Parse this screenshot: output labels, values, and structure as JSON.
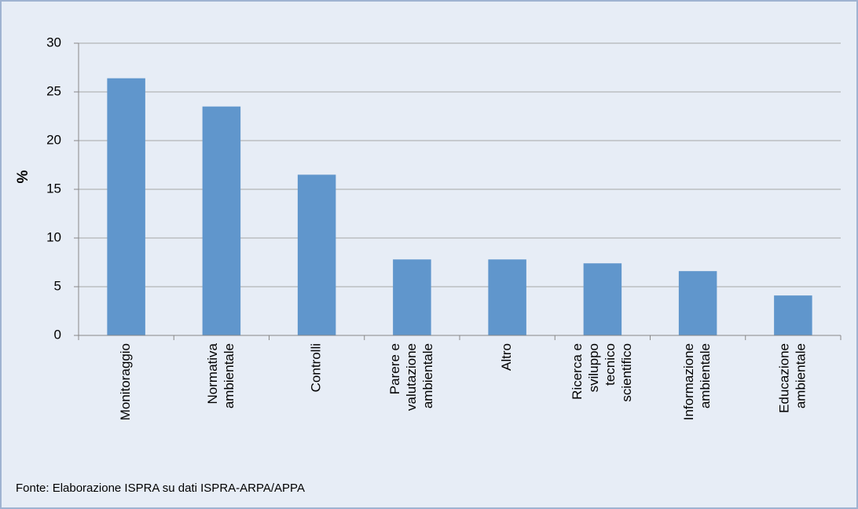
{
  "chart_data": {
    "type": "bar",
    "categories": [
      [
        "Monitoraggio"
      ],
      [
        "Normativa",
        "ambientale"
      ],
      [
        "Controlli"
      ],
      [
        "Parere e",
        "valutazione",
        "ambientale"
      ],
      [
        "Altro"
      ],
      [
        "Ricerca e",
        "sviluppo",
        "tecnico",
        "scientifico"
      ],
      [
        "Informazione",
        "ambientale"
      ],
      [
        "Educazione",
        "ambientale"
      ]
    ],
    "values": [
      26.4,
      23.5,
      16.5,
      7.8,
      7.8,
      7.4,
      6.6,
      4.1
    ],
    "color": "#6096cc",
    "ylabel": "%",
    "ylim": [
      0,
      30
    ],
    "yticks": [
      0,
      5,
      10,
      15,
      20,
      25,
      30
    ],
    "grid": true,
    "source": "Fonte: Elaborazione ISPRA su dati ISPRA-ARPA/APPA"
  }
}
